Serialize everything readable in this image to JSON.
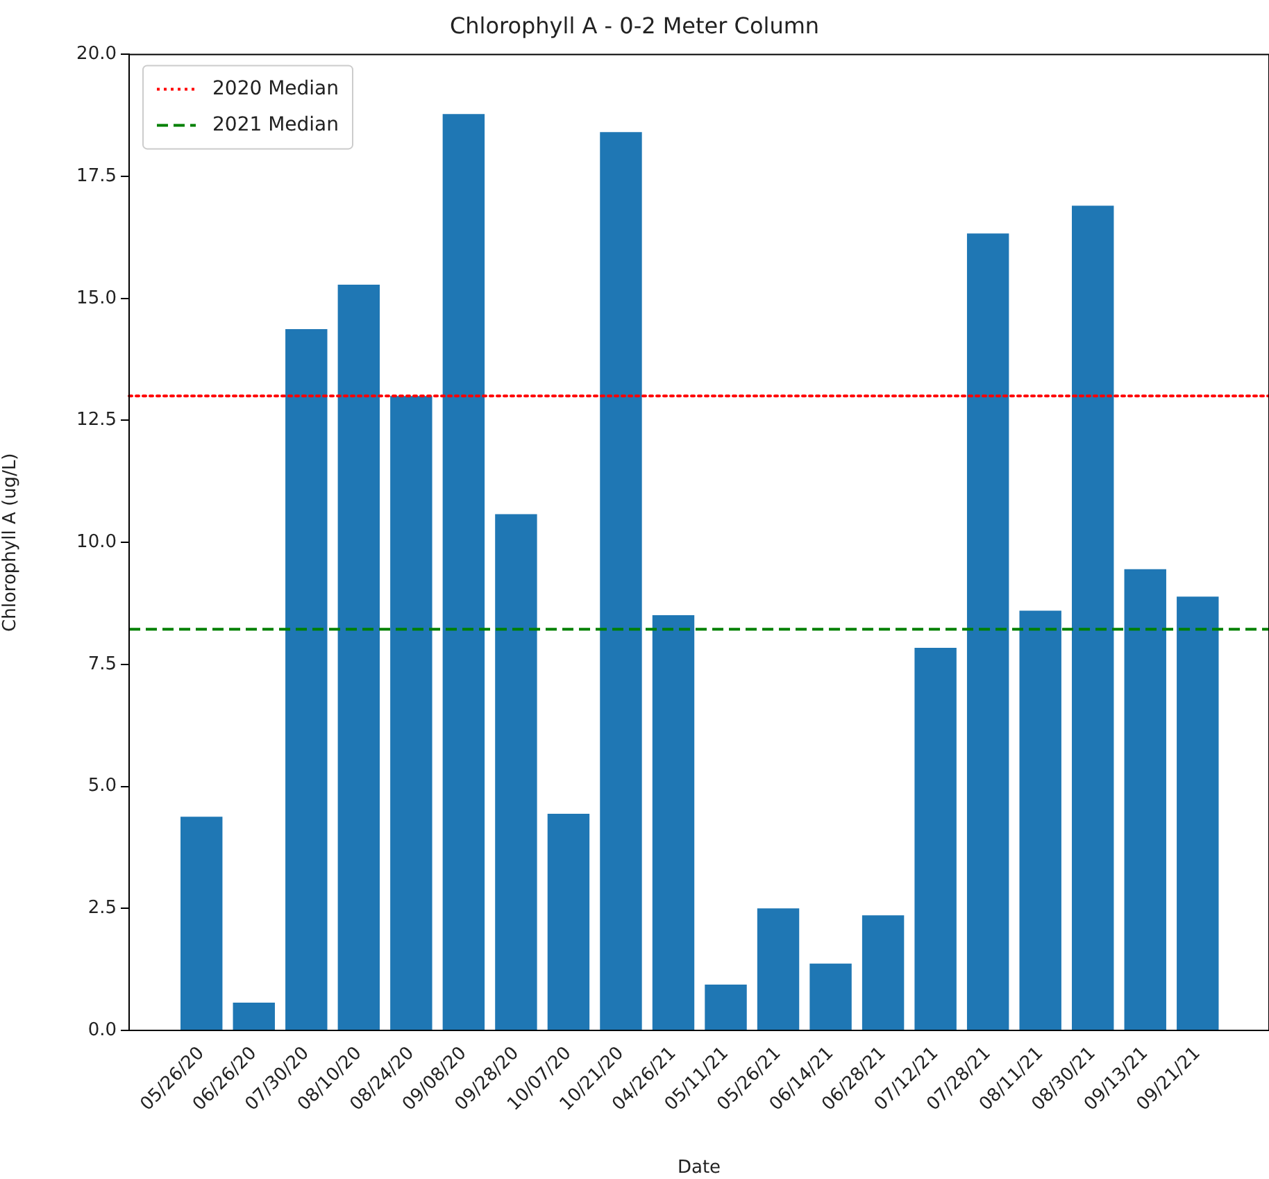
{
  "chart_data": {
    "type": "bar",
    "title": "Chlorophyll A - 0-2 Meter Column",
    "xlabel": "Date",
    "ylabel": "Chlorophyll A (ug/L)",
    "categories": [
      "05/26/20",
      "06/26/20",
      "07/30/20",
      "08/10/20",
      "08/24/20",
      "09/08/20",
      "09/28/20",
      "10/07/20",
      "10/21/20",
      "04/26/21",
      "05/11/21",
      "05/26/21",
      "06/14/21",
      "06/28/21",
      "07/12/21",
      "07/28/21",
      "08/11/21",
      "08/30/21",
      "09/13/21",
      "09/21/21"
    ],
    "values": [
      4.38,
      0.57,
      14.37,
      15.28,
      13.0,
      18.78,
      10.58,
      4.44,
      18.41,
      8.51,
      0.94,
      2.5,
      1.37,
      2.36,
      7.84,
      16.33,
      8.6,
      16.9,
      9.45,
      8.89
    ],
    "color": "#1f77b4",
    "ylim": [
      0,
      20
    ],
    "yticks": [
      {
        "value": 0,
        "label": "0.0"
      },
      {
        "value": 2.5,
        "label": "2.5"
      },
      {
        "value": 5,
        "label": "5.0"
      },
      {
        "value": 7.5,
        "label": "7.5"
      },
      {
        "value": 10,
        "label": "10.0"
      },
      {
        "value": 12.5,
        "label": "12.5"
      },
      {
        "value": 15,
        "label": "15.0"
      },
      {
        "value": 17.5,
        "label": "17.5"
      },
      {
        "value": 20,
        "label": "20.0"
      }
    ],
    "ref_lines": [
      {
        "axis": "y",
        "value": 13.0,
        "label": "2020 Median",
        "color": "#ff0000",
        "line_style": "dotted"
      },
      {
        "axis": "y",
        "value": 8.22,
        "label": "2021 Median",
        "color": "#008000",
        "line_style": "dashed"
      }
    ],
    "grid": false,
    "legend": "top left"
  }
}
